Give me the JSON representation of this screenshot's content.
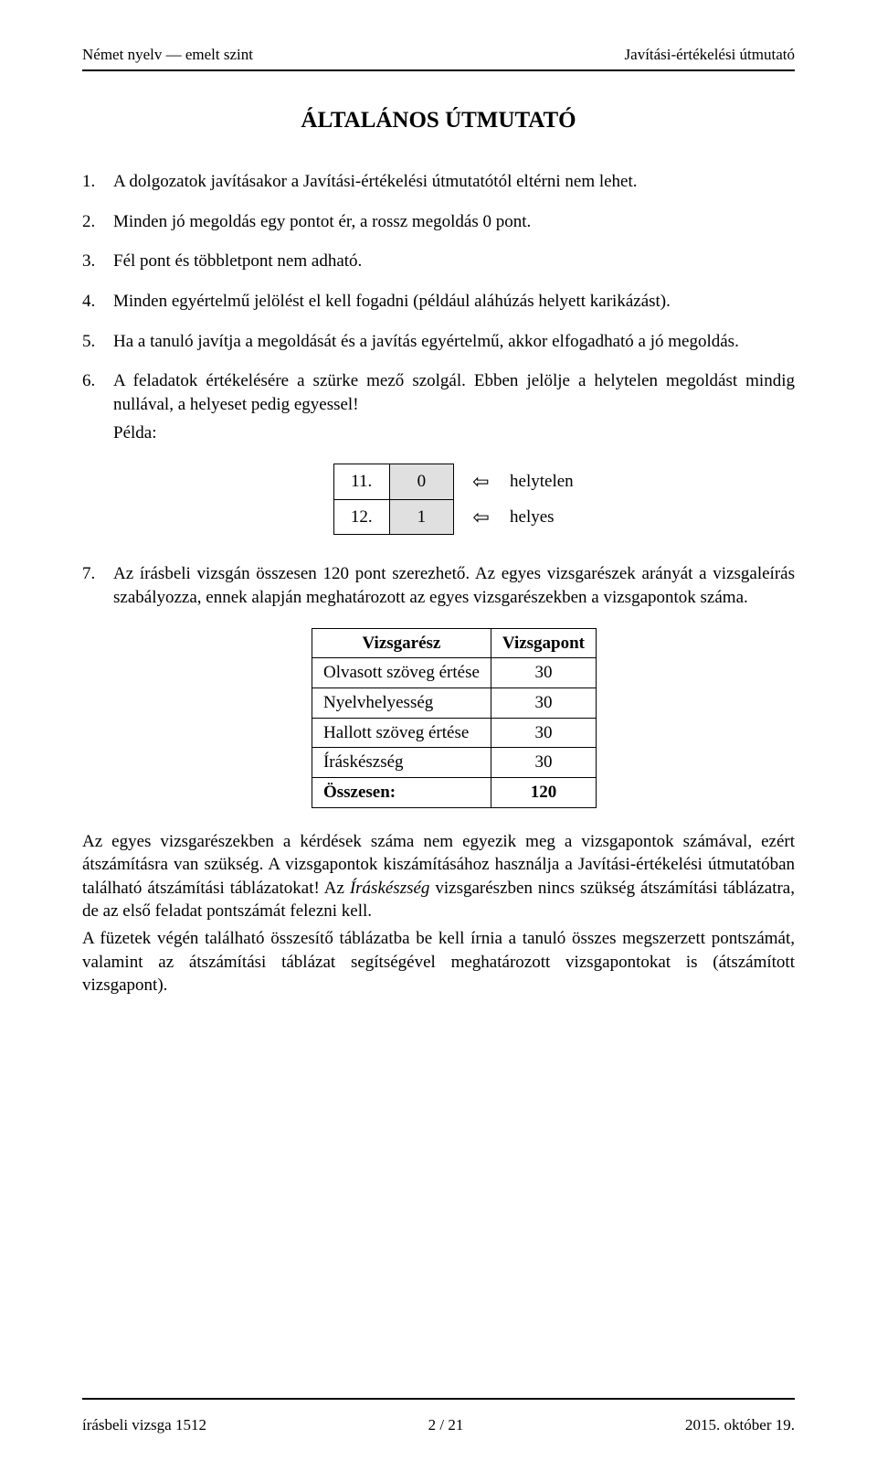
{
  "header": {
    "left": "Német nyelv — emelt szint",
    "right": "Javítási-értékelési útmutató"
  },
  "title": "ÁLTALÁNOS ÚTMUTATÓ",
  "list": {
    "i1": "A dolgozatok javításakor a Javítási-értékelési útmutatótól eltérni nem lehet.",
    "i2": "Minden jó megoldás egy pontot ér, a rossz megoldás 0 pont.",
    "i3": "Fél pont és többletpont nem adható.",
    "i4": "Minden egyértelmű jelölést el kell fogadni (például aláhúzás helyett karikázást).",
    "i5": "Ha a tanuló javítja a megoldását és a javítás egyértelmű, akkor elfogadható a jó megoldás.",
    "i6": "A feladatok értékelésére a szürke mező szolgál. Ebben jelölje a helytelen megoldást mindig nullával, a helyeset pedig egyessel!",
    "i6_example_label": "Példa:",
    "i7": "Az írásbeli vizsgán összesen 120 pont szerezhető. Az egyes vizsgarészek arányát a vizsgaleírás szabályozza, ennek alapján meghatározott az egyes vizsgarészekben a vizsgapontok száma."
  },
  "example_rows": [
    {
      "num": "11.",
      "score": "0",
      "arrow": "⇦",
      "label": "helytelen"
    },
    {
      "num": "12.",
      "score": "1",
      "arrow": "⇦",
      "label": "helyes"
    }
  ],
  "score_table": {
    "head_part": "Vizsgarész",
    "head_points": "Vizsgapont",
    "rows": [
      {
        "name": "Olvasott szöveg értése",
        "points": "30"
      },
      {
        "name": "Nyelvhelyesség",
        "points": "30"
      },
      {
        "name": "Hallott szöveg értése",
        "points": "30"
      },
      {
        "name": "Íráskészség",
        "points": "30"
      }
    ],
    "total_label": "Összesen:",
    "total_value": "120"
  },
  "after_text": {
    "p1a": "Az egyes vizsgarészekben a kérdések száma nem egyezik meg a vizsgapontok számával, ezért átszámításra van szükség. A vizsgapontok kiszámításához használja a Javítási-értékelési útmutatóban található átszámítási táblázatokat! Az ",
    "p1b_italic": "Íráskészség",
    "p1c": " vizsgarészben nincs szükség átszámítási táblázatra, de az első feladat pontszámát felezni kell.",
    "p2": "A füzetek végén található összesítő táblázatba be kell írnia a tanuló összes megszerzett pontszámát, valamint az átszámítási táblázat segítségével meghatározott vizsgapontokat is (átszámított vizsgapont)."
  },
  "footer": {
    "left": "írásbeli vizsga 1512",
    "center": "2 / 21",
    "right": "2015. október 19."
  }
}
